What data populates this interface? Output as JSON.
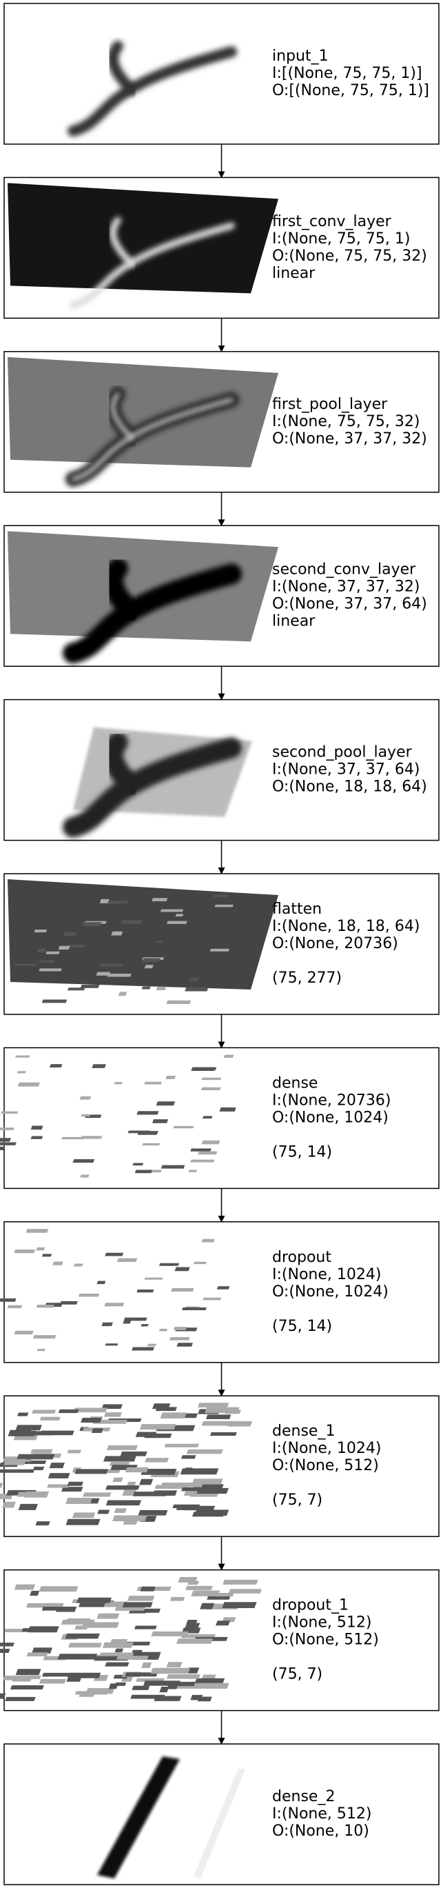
{
  "layers": [
    {
      "name": "input_1",
      "input": "I:[(None, 75, 75, 1)]",
      "output": "O:[(None, 75, 75, 1)]"
    },
    {
      "name": "first_conv_layer",
      "input": "I:(None, 75, 75, 1)",
      "output": "O:(None, 75, 75, 32)",
      "activation": "linear"
    },
    {
      "name": "first_pool_layer",
      "input": "I:(None, 75, 75, 32)",
      "output": "O:(None, 37, 37, 32)"
    },
    {
      "name": "second_conv_layer",
      "input": "I:(None, 37, 37, 32)",
      "output": "O:(None, 37, 37, 64)",
      "activation": "linear"
    },
    {
      "name": "second_pool_layer",
      "input": "I:(None, 37, 37, 64)",
      "output": "O:(None, 18, 18, 64)"
    },
    {
      "name": "flatten",
      "input": "I:(None, 18, 18, 64)",
      "output": "O:(None, 20736)",
      "shape": "(75, 277)"
    },
    {
      "name": "dense",
      "input": "I:(None, 20736)",
      "output": "O:(None, 1024)",
      "shape": "(75, 14)"
    },
    {
      "name": "dropout",
      "input": "I:(None, 1024)",
      "output": "O:(None, 1024)",
      "shape": "(75, 14)"
    },
    {
      "name": "dense_1",
      "input": "I:(None, 1024)",
      "output": "O:(None, 512)",
      "shape": "(75, 7)"
    },
    {
      "name": "dropout_1",
      "input": "I:(None, 512)",
      "output": "O:(None, 512)",
      "shape": "(75, 7)"
    },
    {
      "name": "dense_2",
      "input": "I:(None, 512)",
      "output": "O:(None, 10)"
    }
  ]
}
